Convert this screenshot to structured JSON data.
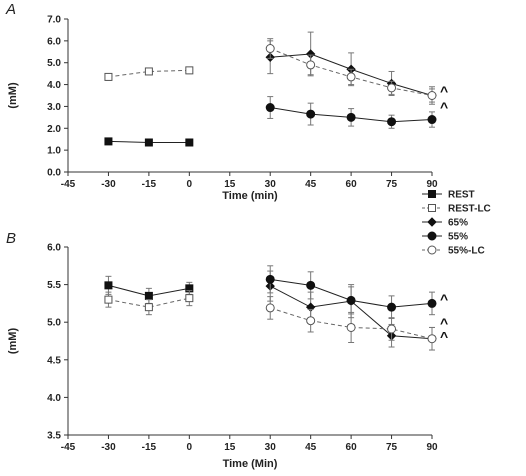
{
  "legend": [
    {
      "name": "REST",
      "marker": "square",
      "filled": true,
      "dashed": false
    },
    {
      "name": "REST-LC",
      "marker": "square",
      "filled": false,
      "dashed": true
    },
    {
      "name": "65%",
      "marker": "diamond",
      "filled": true,
      "dashed": false
    },
    {
      "name": "55%",
      "marker": "circle",
      "filled": true,
      "dashed": false
    },
    {
      "name": "55%-LC",
      "marker": "circle",
      "filled": false,
      "dashed": true
    }
  ],
  "chart_data": [
    {
      "type": "line",
      "panel_label": "A",
      "xlabel": "Time (min)",
      "ylabel": "(mM)",
      "xlim": [
        -45,
        90
      ],
      "ylim": [
        0,
        7
      ],
      "xticks": [
        -45,
        -30,
        -15,
        0,
        15,
        30,
        45,
        60,
        75,
        90
      ],
      "yticks": [
        "0.0",
        "1.0",
        "2.0",
        "3.0",
        "4.0",
        "5.0",
        "6.0",
        "7.0"
      ],
      "annotations": [
        {
          "text": "^",
          "x": 90,
          "y": 3.85
        },
        {
          "text": "^",
          "x": 90,
          "y": 3.1
        }
      ],
      "series": [
        {
          "name": "REST",
          "x": [
            -30,
            -15,
            0
          ],
          "y": [
            1.4,
            1.35,
            1.35
          ],
          "err": [
            0.05,
            0.05,
            0.05
          ]
        },
        {
          "name": "REST-LC",
          "x": [
            -30,
            -15,
            0
          ],
          "y": [
            4.35,
            4.6,
            4.65
          ],
          "err": [
            0.15,
            0.1,
            0.15
          ]
        },
        {
          "name": "65%",
          "x": [
            30,
            45,
            60,
            75,
            90
          ],
          "y": [
            5.25,
            5.4,
            4.7,
            4.05,
            3.5
          ],
          "err": [
            0.75,
            1.0,
            0.75,
            0.55,
            0.4
          ]
        },
        {
          "name": "55%",
          "x": [
            30,
            45,
            60,
            75,
            90
          ],
          "y": [
            2.95,
            2.65,
            2.5,
            2.3,
            2.4
          ],
          "err": [
            0.5,
            0.5,
            0.4,
            0.3,
            0.35
          ]
        },
        {
          "name": "55%-LC",
          "x": [
            30,
            45,
            60,
            75,
            90
          ],
          "y": [
            5.65,
            4.9,
            4.35,
            3.85,
            3.5
          ],
          "err": [
            0.45,
            0.45,
            0.35,
            0.3,
            0.3
          ]
        }
      ]
    },
    {
      "type": "line",
      "panel_label": "B",
      "xlabel": "Time (Min)",
      "ylabel": "(mM)",
      "xlim": [
        -45,
        90
      ],
      "ylim": [
        3.5,
        6.0
      ],
      "xticks": [
        -45,
        -30,
        -15,
        0,
        15,
        30,
        45,
        60,
        75,
        90
      ],
      "yticks": [
        "3.5",
        "4.0",
        "4.5",
        "5.0",
        "5.5",
        "6.0"
      ],
      "annotations": [
        {
          "text": "^",
          "x": 90,
          "y": 5.35
        },
        {
          "text": "^",
          "x": 90,
          "y": 5.03
        },
        {
          "text": "^",
          "x": 90,
          "y": 4.85
        }
      ],
      "series": [
        {
          "name": "REST",
          "x": [
            -30,
            -15,
            0
          ],
          "y": [
            5.49,
            5.35,
            5.45
          ],
          "err": [
            0.12,
            0.1,
            0.08
          ]
        },
        {
          "name": "REST-LC",
          "x": [
            -30,
            -15,
            0
          ],
          "y": [
            5.3,
            5.2,
            5.32
          ],
          "err": [
            0.1,
            0.1,
            0.1
          ]
        },
        {
          "name": "65%",
          "x": [
            30,
            45,
            60,
            75,
            90
          ],
          "y": [
            5.48,
            5.2,
            5.28,
            4.82,
            4.78
          ],
          "err": [
            0.2,
            0.2,
            0.22,
            0.15,
            0.15
          ]
        },
        {
          "name": "55%",
          "x": [
            30,
            45,
            60,
            75,
            90
          ],
          "y": [
            5.57,
            5.49,
            5.29,
            5.2,
            5.25
          ],
          "err": [
            0.18,
            0.18,
            0.18,
            0.15,
            0.15
          ]
        },
        {
          "name": "55%-LC",
          "x": [
            30,
            45,
            60,
            75,
            90
          ],
          "y": [
            5.19,
            5.02,
            4.93,
            4.91,
            4.78
          ],
          "err": [
            0.15,
            0.15,
            0.2,
            0.15,
            0.15
          ]
        }
      ]
    }
  ]
}
